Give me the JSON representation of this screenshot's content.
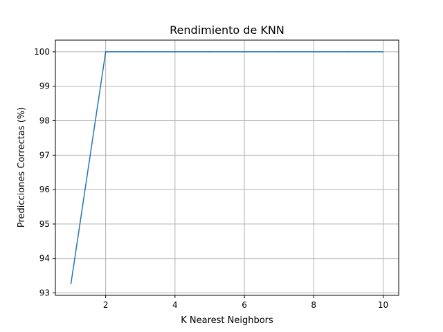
{
  "chart_data": {
    "type": "line",
    "title": "Rendimiento de KNN",
    "xlabel": "K Nearest Neighbors",
    "ylabel": "Predicciones Correctas (%)",
    "xlim": [
      0.55,
      10.45
    ],
    "ylim": [
      92.93,
      100.34
    ],
    "xticks": [
      2,
      4,
      6,
      8,
      10
    ],
    "yticks": [
      93,
      94,
      95,
      96,
      97,
      98,
      99,
      100
    ],
    "grid": true,
    "series": [
      {
        "color": "#1f77b4",
        "x": [
          1,
          2,
          3,
          4,
          5,
          6,
          7,
          8,
          9,
          10
        ],
        "y": [
          93.27,
          100,
          100,
          100,
          100,
          100,
          100,
          100,
          100,
          100
        ]
      }
    ]
  }
}
